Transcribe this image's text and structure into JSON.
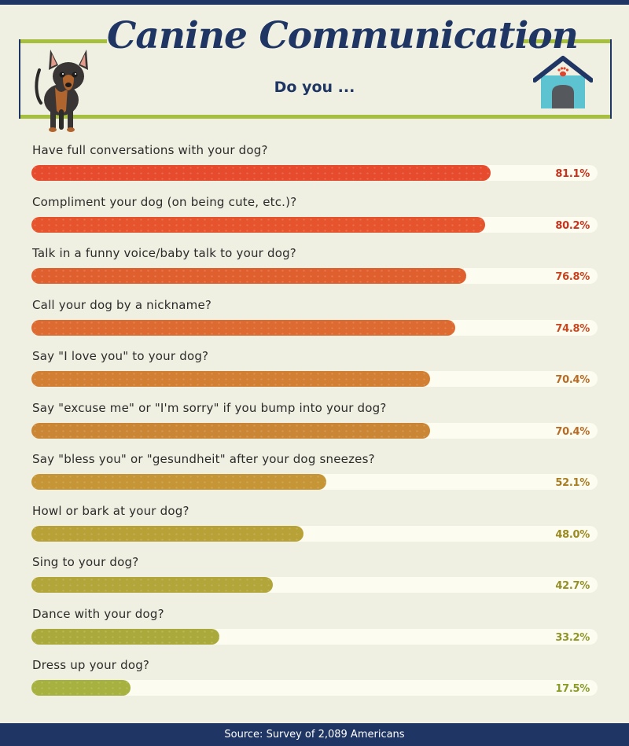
{
  "header": {
    "title": "Canine Communication",
    "subtitle": "Do you ..."
  },
  "icons": {
    "dog": "dog-illustration",
    "house": "doghouse-icon",
    "paw": "paw-icon"
  },
  "colors": {
    "navy": "#1f3564",
    "green": "#a6bf3f",
    "background": "#f0f0e2",
    "track": "#fcfcf0"
  },
  "chart_data": {
    "type": "bar",
    "orientation": "horizontal",
    "xlim": [
      0,
      100
    ],
    "categories": [
      "Have full conversations with your dog?",
      "Compliment your dog (on being cute, etc.)?",
      "Talk in a funny voice/baby talk to your dog?",
      "Call your dog by a nickname?",
      "Say \"I love you\" to your dog?",
      "Say \"excuse me\" or \"I'm sorry\" if you bump into your dog?",
      "Say \"bless you\" or \"gesundheit\" after your dog sneezes?",
      "Howl or bark at your dog?",
      "Sing to your dog?",
      "Dance with your dog?",
      "Dress up your dog?"
    ],
    "values": [
      81.1,
      80.2,
      76.8,
      74.8,
      70.4,
      70.4,
      52.1,
      48.0,
      42.7,
      33.2,
      17.5
    ],
    "value_labels": [
      "81.1%",
      "80.2%",
      "76.8%",
      "74.8%",
      "70.4%",
      "70.4%",
      "52.1%",
      "48.0%",
      "42.7%",
      "33.2%",
      "17.5%"
    ],
    "bar_colors": [
      "#e64b2d",
      "#e6542d",
      "#e05f2e",
      "#dd6a30",
      "#d27e33",
      "#ca8635",
      "#c69536",
      "#b8a136",
      "#b2a53a",
      "#aaaa3c",
      "#a6b13f"
    ],
    "label_colors": [
      "#c9321c",
      "#c9321c",
      "#c8441f",
      "#c54a22",
      "#b86b25",
      "#b86b25",
      "#a97c22",
      "#9a8a21",
      "#948f26",
      "#8f9528",
      "#8c9a2a"
    ]
  },
  "footer": {
    "source": "Source: Survey of 2,089 Americans"
  }
}
